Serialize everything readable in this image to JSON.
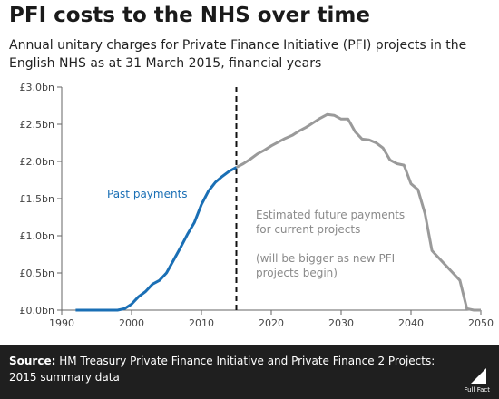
{
  "title": "PFI costs to the NHS over time",
  "subtitle": "Annual unitary charges for Private Finance Initiative (PFI) projects in the English NHS as at 31 March 2015, financial years",
  "footer": {
    "source_label": "Source:",
    "source_text": "HM Treasury Private Finance Initiative and Private Finance 2 Projects: 2015 summary data",
    "logo_text": "Full Fact"
  },
  "colors": {
    "past": "#1a6fb5",
    "future": "#9a9a9a",
    "axis": "#666666",
    "footer_bg": "#1f1f1f"
  },
  "chart_data": {
    "type": "line",
    "title": "PFI costs to the NHS over time",
    "xlabel": "",
    "ylabel": "",
    "xlim": [
      1990,
      2050
    ],
    "ylim": [
      0,
      3.0
    ],
    "x_ticks": [
      1990,
      2000,
      2010,
      2020,
      2030,
      2040,
      2050
    ],
    "y_ticks": [
      0,
      0.5,
      1.0,
      1.5,
      2.0,
      2.5,
      3.0
    ],
    "y_tick_labels": [
      "£0.0bn",
      "£0.5bn",
      "£1.0bn",
      "£1.5bn",
      "£2.0bn",
      "£2.5bn",
      "£3.0bn"
    ],
    "grid": false,
    "divider_x": 2015,
    "series": [
      {
        "name": "Past payments",
        "style": "solid",
        "points": [
          [
            1992,
            0.0
          ],
          [
            1993,
            0.0
          ],
          [
            1994,
            0.0
          ],
          [
            1995,
            0.0
          ],
          [
            1996,
            0.0
          ],
          [
            1997,
            0.0
          ],
          [
            1998,
            0.0
          ],
          [
            1999,
            0.02
          ],
          [
            2000,
            0.08
          ],
          [
            2001,
            0.18
          ],
          [
            2002,
            0.25
          ],
          [
            2003,
            0.35
          ],
          [
            2004,
            0.4
          ],
          [
            2005,
            0.5
          ],
          [
            2006,
            0.67
          ],
          [
            2007,
            0.84
          ],
          [
            2008,
            1.02
          ],
          [
            2009,
            1.18
          ],
          [
            2010,
            1.42
          ],
          [
            2011,
            1.6
          ],
          [
            2012,
            1.72
          ],
          [
            2013,
            1.8
          ],
          [
            2014,
            1.87
          ],
          [
            2015,
            1.92
          ]
        ]
      },
      {
        "name": "Estimated future payments for current projects",
        "style": "solid",
        "points": [
          [
            2015,
            1.92
          ],
          [
            2016,
            1.97
          ],
          [
            2017,
            2.03
          ],
          [
            2018,
            2.1
          ],
          [
            2019,
            2.15
          ],
          [
            2020,
            2.21
          ],
          [
            2021,
            2.26
          ],
          [
            2022,
            2.31
          ],
          [
            2023,
            2.35
          ],
          [
            2024,
            2.41
          ],
          [
            2025,
            2.46
          ],
          [
            2026,
            2.52
          ],
          [
            2027,
            2.58
          ],
          [
            2028,
            2.63
          ],
          [
            2029,
            2.62
          ],
          [
            2030,
            2.57
          ],
          [
            2031,
            2.57
          ],
          [
            2032,
            2.4
          ],
          [
            2033,
            2.3
          ],
          [
            2034,
            2.29
          ],
          [
            2035,
            2.25
          ],
          [
            2036,
            2.18
          ],
          [
            2037,
            2.02
          ],
          [
            2038,
            1.97
          ],
          [
            2039,
            1.95
          ],
          [
            2040,
            1.7
          ],
          [
            2041,
            1.62
          ],
          [
            2042,
            1.3
          ],
          [
            2043,
            0.8
          ],
          [
            2044,
            0.7
          ],
          [
            2045,
            0.6
          ],
          [
            2046,
            0.5
          ],
          [
            2047,
            0.4
          ],
          [
            2048,
            0.02
          ],
          [
            2049,
            0.0
          ],
          [
            2050,
            0.0
          ]
        ]
      }
    ],
    "annotations": {
      "past_label": "Past payments",
      "future_label_lines": [
        "Estimated future payments",
        "for current projects"
      ],
      "note_lines": [
        "(will be bigger as new PFI",
        "projects begin)"
      ]
    }
  }
}
